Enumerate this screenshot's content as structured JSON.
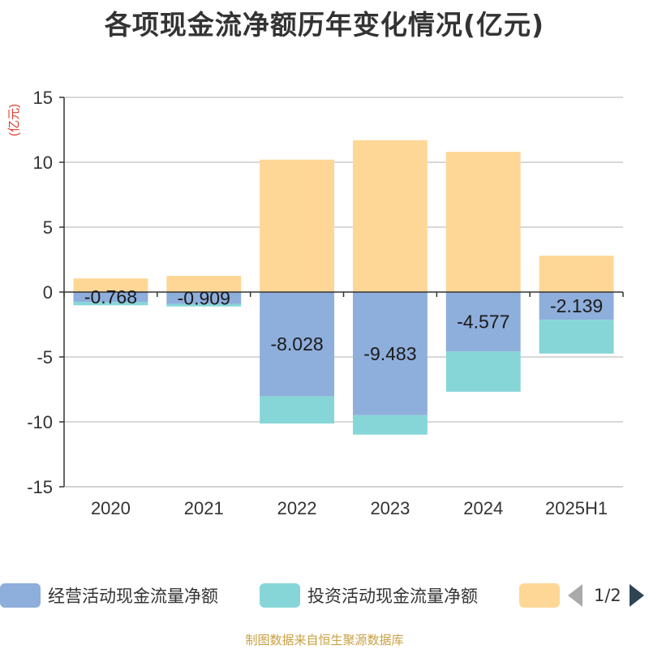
{
  "chart_data": {
    "type": "bar",
    "stacked": true,
    "title": "各项现金流净额历年变化情况(亿元)",
    "ylabel": "(亿元)",
    "categories": [
      "2020",
      "2021",
      "2022",
      "2023",
      "2024",
      "2025H1"
    ],
    "ylim": [
      -15,
      15
    ],
    "yticks": [
      15,
      10,
      5,
      0,
      -5,
      -10,
      -15
    ],
    "grid": true,
    "series": [
      {
        "name": "经营活动现金流量净额",
        "color": "#8eaedb",
        "values": [
          -0.768,
          -0.909,
          -8.028,
          -9.483,
          -4.577,
          -2.139
        ],
        "data_labels": [
          "-0.768",
          "-0.909",
          "-8.028",
          "-9.483",
          "-4.577",
          "-2.139"
        ]
      },
      {
        "name": "投资活动现金流量净额",
        "color": "#86d6d8",
        "values": [
          -0.25,
          -0.2,
          -2.1,
          -1.5,
          -3.1,
          -2.6
        ]
      },
      {
        "name": "",
        "color": "#fed797",
        "values": [
          1.05,
          1.25,
          10.2,
          11.7,
          10.8,
          2.8
        ]
      }
    ],
    "legend_position": "bottom",
    "legend_page": "1/2"
  },
  "source": "制图数据来自恒生聚源数据库"
}
